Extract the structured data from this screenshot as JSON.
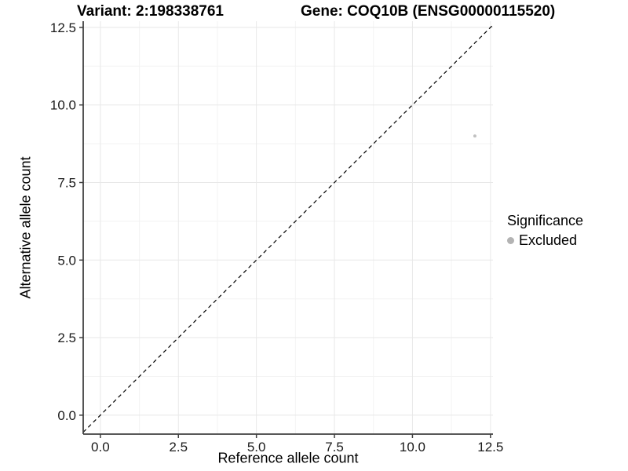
{
  "header": {
    "variant_title": "Variant: 2:198338761",
    "gene_title": "Gene: COQ10B (ENSG00000115520)"
  },
  "chart_data": {
    "type": "scatter",
    "title_left": "Variant: 2:198338761",
    "title_right": "Gene: COQ10B (ENSG00000115520)",
    "xlabel": "Reference allele count",
    "ylabel": "Alternative allele count",
    "xlim": [
      -0.55,
      12.58
    ],
    "ylim": [
      -0.61,
      12.7
    ],
    "x_ticks": [
      0.0,
      2.5,
      5.0,
      7.5,
      10.0,
      12.5
    ],
    "x_tick_labels": [
      "0.0",
      "2.5",
      "5.0",
      "7.5",
      "10.0",
      "12.5"
    ],
    "y_ticks": [
      0.0,
      2.5,
      5.0,
      7.5,
      10.0,
      12.5
    ],
    "y_tick_labels": [
      "0.0",
      "2.5",
      "5.0",
      "7.5",
      "10.0",
      "12.5"
    ],
    "x_minor_ticks": [
      1.25,
      3.75,
      6.25,
      8.75,
      11.25
    ],
    "y_minor_ticks": [
      1.25,
      3.75,
      6.25,
      8.75,
      11.25
    ],
    "grid": true,
    "legend_position": "right",
    "diagonal_line": {
      "type": "identity y=x",
      "style": "dashed",
      "color": "#000000"
    },
    "series": [
      {
        "name": "Excluded",
        "color": "#c1c1c1",
        "points": [
          {
            "x": 12,
            "y": 9
          }
        ]
      }
    ],
    "legend": {
      "title": "Significance",
      "entries": [
        {
          "label": "Excluded",
          "color": "#b3b3b3"
        }
      ]
    },
    "colors": {
      "background": "#ffffff",
      "axis_line": "#404040",
      "tick_label": "#1a1a1a",
      "grid_major": "#e8e8e8",
      "grid_minor": "#f3f3f3"
    }
  }
}
